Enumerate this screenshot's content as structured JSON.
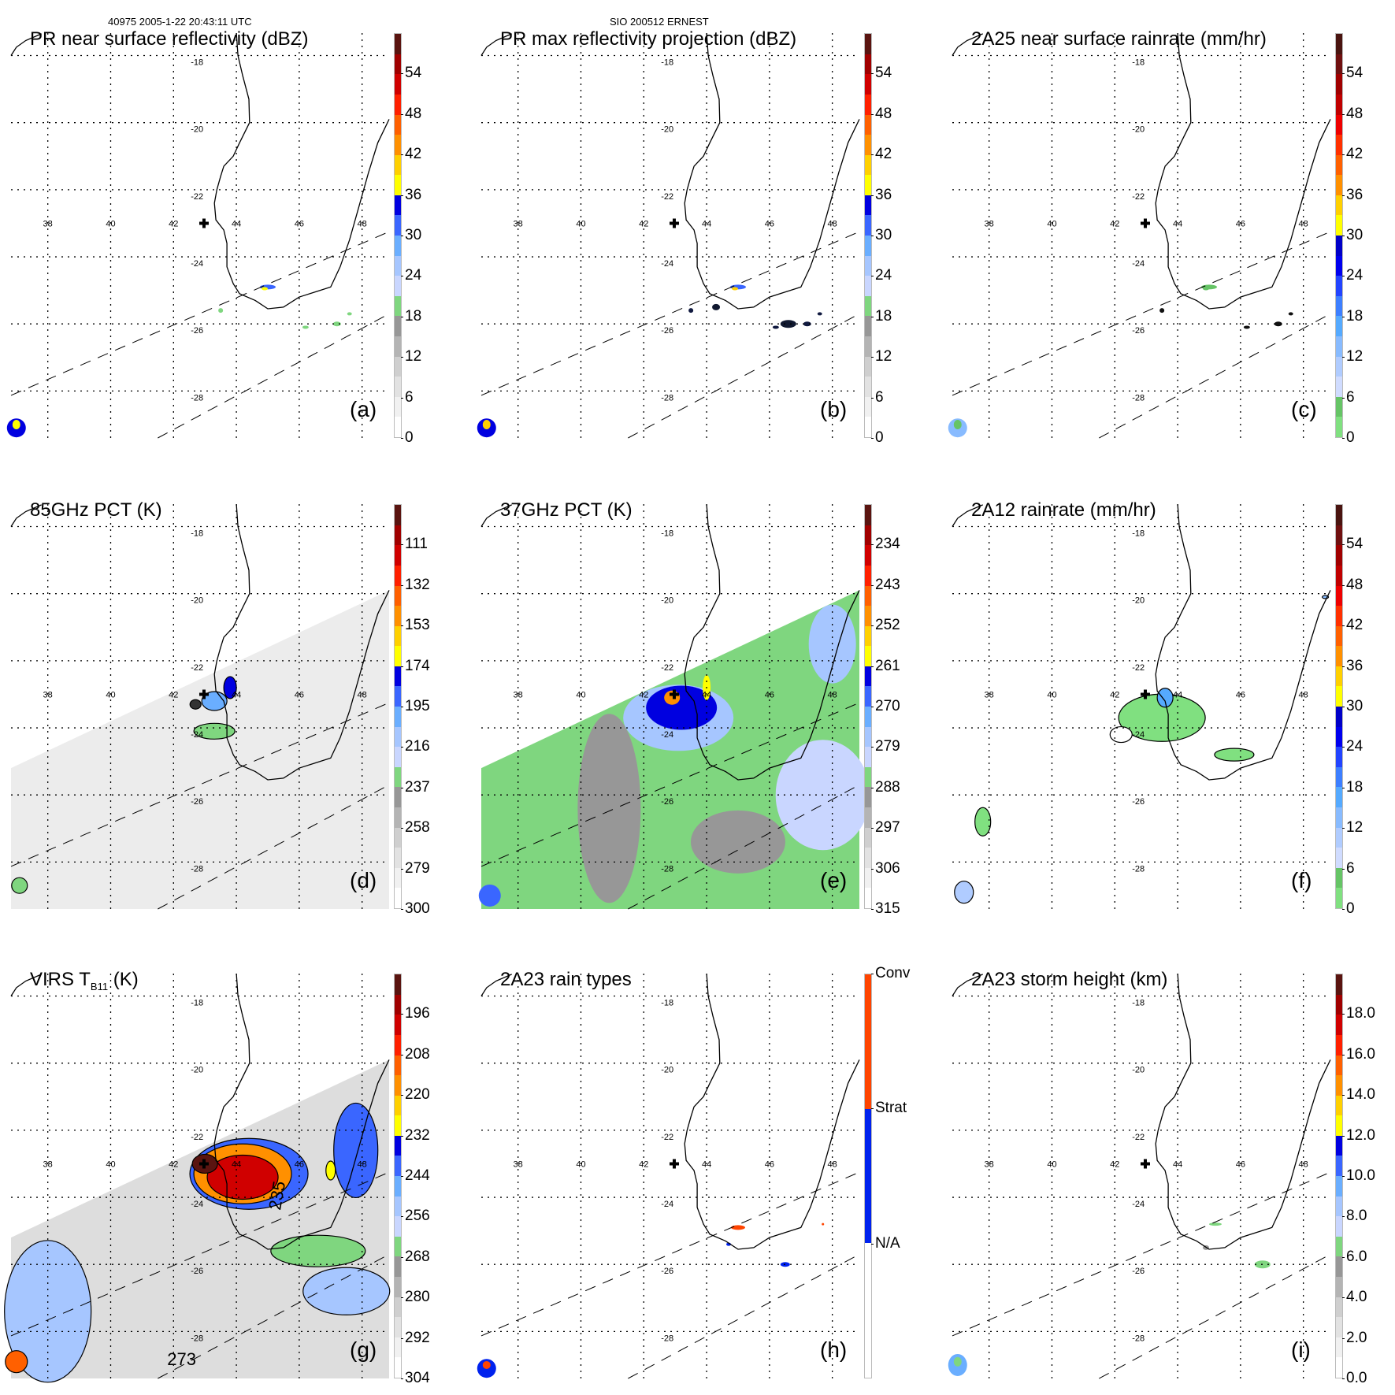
{
  "header": {
    "orbit_time": "40975 2005-1-22 20:43:11 UTC",
    "storm": "SIO 200512 ERNEST"
  },
  "axes": {
    "lon_ticks": [
      "38",
      "40",
      "42",
      "44",
      "46",
      "48"
    ],
    "lat_ticks": [
      "-18",
      "-20",
      "-22",
      "-24",
      "-26",
      "-28"
    ],
    "lon_range": [
      36.83,
      48.86
    ],
    "lat_range": [
      -17.33,
      -29.4
    ],
    "storm_center": [
      42.97,
      -23.0
    ]
  },
  "palettes": {
    "standard": [
      "#ffffff",
      "#f1f1f1",
      "#e2e2e2",
      "#cfcfcf",
      "#b4b4b4",
      "#979797",
      "#7fd67f",
      "#c9d6ff",
      "#a6c6ff",
      "#6aaeff",
      "#3a66ff",
      "#0000e0",
      "#ffff00",
      "#ffd000",
      "#ff9000",
      "#ff6000",
      "#ff2000",
      "#d00000",
      "#a00000",
      "#5a1410"
    ],
    "rain": [
      "#80e080",
      "#66c466",
      "#d0dcff",
      "#b0ccff",
      "#88bbff",
      "#55aaff",
      "#3d7fff",
      "#2244ff",
      "#0000ee",
      "#0000c8",
      "#ffff00",
      "#ffd000",
      "#ff9000",
      "#ff6000",
      "#ff3000",
      "#ee0000",
      "#c00000",
      "#a00000",
      "#701010",
      "#4a1410"
    ],
    "types": [
      "#ffffff",
      "#0022ee",
      "#ff4400"
    ]
  },
  "chart_data": [
    {
      "id": "a",
      "type": "heatmap",
      "title": "PR near surface reflectivity (dBZ)",
      "letter": "(a)",
      "palette": "standard",
      "ticks": [
        "0",
        "6",
        "12",
        "18",
        "24",
        "30",
        "36",
        "42",
        "48",
        "54"
      ]
    },
    {
      "id": "b",
      "type": "heatmap",
      "title": "PR max reflectivity projection (dBZ)",
      "letter": "(b)",
      "palette": "standard",
      "ticks": [
        "0",
        "6",
        "12",
        "18",
        "24",
        "30",
        "36",
        "42",
        "48",
        "54"
      ]
    },
    {
      "id": "c",
      "type": "heatmap",
      "title": "2A25 near surface rainrate (mm/hr)",
      "letter": "(c)",
      "palette": "rain",
      "ticks": [
        "0",
        "6",
        "12",
        "18",
        "24",
        "30",
        "36",
        "42",
        "48",
        "54"
      ]
    },
    {
      "id": "d",
      "type": "heatmap",
      "title": "85GHz PCT (K)",
      "letter": "(d)",
      "palette": "standard",
      "ticks": [
        "300",
        "279",
        "258",
        "237",
        "216",
        "195",
        "174",
        "153",
        "132",
        "111"
      ]
    },
    {
      "id": "e",
      "type": "heatmap",
      "title": "37GHz PCT (K)",
      "letter": "(e)",
      "palette": "standard",
      "ticks": [
        "315",
        "306",
        "297",
        "288",
        "279",
        "270",
        "261",
        "252",
        "243",
        "234"
      ]
    },
    {
      "id": "f",
      "type": "heatmap",
      "title": "2A12 rainrate (mm/hr)",
      "letter": "(f)",
      "palette": "rain",
      "ticks": [
        "0",
        "6",
        "12",
        "18",
        "24",
        "30",
        "36",
        "42",
        "48",
        "54"
      ]
    },
    {
      "id": "g",
      "type": "heatmap",
      "title": "VIRS T",
      "title_sub": "B11",
      "title_tail": " (K)",
      "letter": "(g)",
      "palette": "standard",
      "ticks": [
        "304",
        "292",
        "280",
        "268",
        "256",
        "244",
        "232",
        "220",
        "208",
        "196"
      ],
      "contour_labels": [
        "273",
        "235"
      ]
    },
    {
      "id": "h",
      "type": "heatmap",
      "title": "2A23 rain types",
      "letter": "(h)",
      "palette": "types",
      "categorical": true,
      "ticks": [
        "N/A",
        "Strat",
        "Conv"
      ]
    },
    {
      "id": "i",
      "type": "heatmap",
      "title": "2A23 storm height (km)",
      "letter": "(i)",
      "palette": "standard",
      "ticks": [
        "0.0",
        "2.0",
        "4.0",
        "6.0",
        "8.0",
        "10.0",
        "12.0",
        "14.0",
        "16.0",
        "18.0"
      ]
    }
  ]
}
